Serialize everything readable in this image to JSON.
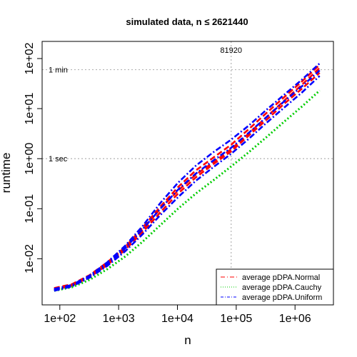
{
  "chart_data": {
    "type": "line",
    "title": "simulated data, n ≤ 2621440",
    "xlabel": "n",
    "ylabel": "runtime",
    "x_scale": "log",
    "y_scale": "log",
    "xlim": [
      50,
      4500000
    ],
    "ylim": [
      0.0012,
      220
    ],
    "x_ticks": [
      {
        "value": 100,
        "label": "1e+02"
      },
      {
        "value": 1000,
        "label": "1e+03"
      },
      {
        "value": 10000,
        "label": "1e+04"
      },
      {
        "value": 100000,
        "label": "1e+05"
      },
      {
        "value": 1000000,
        "label": "1e+06"
      }
    ],
    "y_ticks": [
      {
        "value": 0.01,
        "label": "1e-02"
      },
      {
        "value": 0.1,
        "label": "1e-01"
      },
      {
        "value": 1,
        "label": "1e+00"
      },
      {
        "value": 10,
        "label": "1e+01"
      },
      {
        "value": 100,
        "label": "1e+02"
      }
    ],
    "reference_lines": [
      {
        "axis": "y",
        "value": 60,
        "label": "1 min"
      },
      {
        "axis": "y",
        "value": 1,
        "label": "1 sec"
      },
      {
        "axis": "x",
        "value": 81920,
        "label": "81920"
      }
    ],
    "legend": {
      "position": "bottom-right",
      "entries": [
        {
          "label": "average pDPA.Normal",
          "color": "#ff0000",
          "dash": "6,3,1,3"
        },
        {
          "label": "average pDPA.Cauchy",
          "color": "#00cd00",
          "dash": "1,2"
        },
        {
          "label": "average pDPA.Uniform",
          "color": "#0000ff",
          "dash": "4,2,1,2"
        }
      ]
    },
    "x": [
      80,
      160,
      320,
      640,
      1280,
      2560,
      5120,
      10240,
      20480,
      40960,
      81920,
      163840,
      327680,
      655360,
      1310720,
      2621440
    ],
    "series": [
      {
        "group": "average pDPA.Normal",
        "color": "#ff0000",
        "dash": "8,4",
        "width": 2.6,
        "values": [
          0.0025,
          0.003,
          0.0045,
          0.008,
          0.016,
          0.038,
          0.1,
          0.23,
          0.48,
          0.85,
          1.55,
          3.2,
          6.8,
          14.5,
          30,
          65
        ]
      },
      {
        "group": "average pDPA.Normal",
        "color": "#ff0000",
        "dash": "8,4",
        "width": 2.6,
        "values": [
          0.0024,
          0.0029,
          0.0043,
          0.0075,
          0.015,
          0.034,
          0.085,
          0.2,
          0.42,
          0.78,
          1.4,
          2.9,
          6,
          12.5,
          25,
          52
        ]
      },
      {
        "group": "average pDPA.Normal",
        "color": "#ff0000",
        "dash": "8,4",
        "width": 2.6,
        "values": [
          0.0026,
          0.0031,
          0.0047,
          0.0085,
          0.017,
          0.042,
          0.11,
          0.27,
          0.58,
          1.05,
          1.9,
          3.9,
          8.2,
          17,
          35,
          75
        ]
      },
      {
        "group": "average pDPA.Cauchy",
        "color": "#00cd00",
        "dash": "2,3",
        "width": 3,
        "values": [
          0.0023,
          0.0027,
          0.0038,
          0.0062,
          0.011,
          0.022,
          0.047,
          0.1,
          0.2,
          0.37,
          0.7,
          1.35,
          2.7,
          5.5,
          11,
          23
        ]
      },
      {
        "group": "average pDPA.Uniform",
        "color": "#0000ff",
        "dash": "8,3,2,3",
        "width": 2.6,
        "values": [
          0.0025,
          0.003,
          0.0046,
          0.0085,
          0.018,
          0.045,
          0.13,
          0.33,
          0.72,
          1.35,
          2.4,
          4.6,
          9.5,
          19,
          38,
          80
        ]
      },
      {
        "group": "average pDPA.Uniform",
        "color": "#0000ff",
        "dash": "8,3,2,3",
        "width": 2.6,
        "values": [
          0.0024,
          0.0029,
          0.0044,
          0.0078,
          0.016,
          0.039,
          0.1,
          0.24,
          0.5,
          0.92,
          1.65,
          3.3,
          6.8,
          14,
          28,
          58
        ]
      },
      {
        "group": "average pDPA.Uniform",
        "color": "#0000ff",
        "dash": "8,3,2,3",
        "width": 2.6,
        "values": [
          0.0023,
          0.0028,
          0.0042,
          0.0072,
          0.014,
          0.031,
          0.075,
          0.17,
          0.36,
          0.68,
          1.25,
          2.5,
          5.2,
          10.5,
          21,
          45
        ]
      }
    ]
  }
}
